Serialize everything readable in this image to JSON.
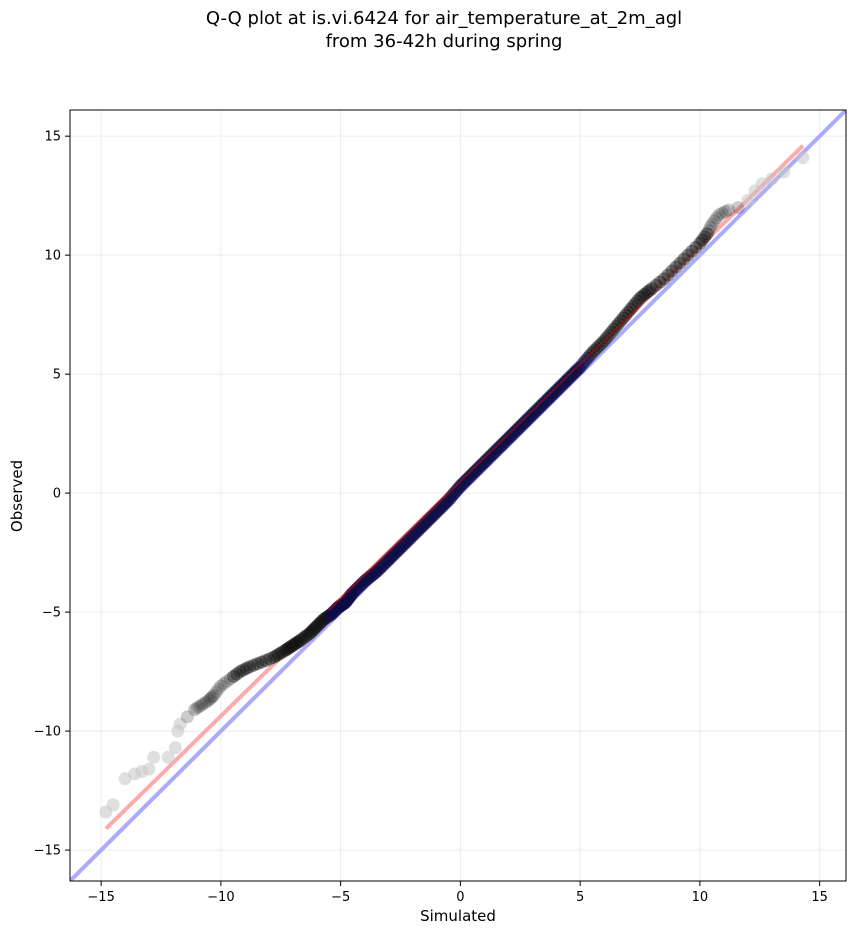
{
  "chart_data": {
    "type": "scatter",
    "title_lines": [
      "Q-Q plot at is.vi.6424 for air_temperature_at_2m_agl",
      "from 36-42h during spring"
    ],
    "xlabel": "Simulated",
    "ylabel": "Observed",
    "xlim": [
      -16.3,
      16.1
    ],
    "ylim": [
      -16.3,
      16.1
    ],
    "x_ticks": [
      -15,
      -10,
      -5,
      0,
      5,
      10,
      15
    ],
    "y_ticks": [
      -15,
      -10,
      -5,
      0,
      5,
      10,
      15
    ],
    "x_tick_labels": [
      "−15",
      "−10",
      "−5",
      "0",
      "5",
      "10",
      "15"
    ],
    "y_tick_labels": [
      "−15",
      "−10",
      "−5",
      "0",
      "5",
      "10",
      "15"
    ],
    "grid": true,
    "reference_lines": [
      {
        "role": "identity",
        "color": "#aaaaff",
        "x": [
          -16.3,
          16.1
        ],
        "y": [
          -16.3,
          16.1
        ]
      },
      {
        "role": "fit",
        "color": "#ffaaaa",
        "x": [
          -14.8,
          14.3
        ],
        "y": [
          -14.1,
          14.6
        ]
      }
    ],
    "quantile_points": [
      [
        -14.8,
        -13.4
      ],
      [
        -14.5,
        -13.1
      ],
      [
        -14.0,
        -12.0
      ],
      [
        -13.6,
        -11.8
      ],
      [
        -13.3,
        -11.7
      ],
      [
        -13.0,
        -11.6
      ],
      [
        -12.8,
        -11.1
      ],
      [
        -12.2,
        -11.1
      ],
      [
        -11.9,
        -10.7
      ],
      [
        -11.8,
        -10.0
      ],
      [
        -11.7,
        -9.7
      ],
      [
        -11.4,
        -9.4
      ],
      [
        -11.1,
        -9.1
      ],
      [
        -10.8,
        -8.9
      ],
      [
        -10.5,
        -8.7
      ],
      [
        -10.3,
        -8.5
      ],
      [
        -10.0,
        -8.1
      ],
      [
        -9.6,
        -7.8
      ],
      [
        -9.2,
        -7.5
      ],
      [
        -8.8,
        -7.3
      ],
      [
        -8.3,
        -7.1
      ],
      [
        -7.8,
        -6.9
      ],
      [
        -7.3,
        -6.6
      ],
      [
        -7.0,
        -6.4
      ],
      [
        -6.7,
        -6.2
      ],
      [
        -6.3,
        -5.9
      ],
      [
        -6.0,
        -5.6
      ],
      [
        -5.7,
        -5.3
      ],
      [
        -5.4,
        -5.1
      ],
      [
        -5.1,
        -4.8
      ],
      [
        -4.8,
        -4.6
      ],
      [
        -4.5,
        -4.2
      ],
      [
        -4.0,
        -3.7
      ],
      [
        -3.5,
        -3.3
      ],
      [
        -3.0,
        -2.8
      ],
      [
        -2.5,
        -2.3
      ],
      [
        -2.0,
        -1.8
      ],
      [
        -1.5,
        -1.3
      ],
      [
        -1.0,
        -0.8
      ],
      [
        -0.5,
        -0.3
      ],
      [
        0.0,
        0.3
      ],
      [
        0.5,
        0.8
      ],
      [
        1.0,
        1.3
      ],
      [
        1.5,
        1.8
      ],
      [
        2.0,
        2.3
      ],
      [
        2.5,
        2.8
      ],
      [
        3.0,
        3.3
      ],
      [
        3.5,
        3.8
      ],
      [
        4.0,
        4.3
      ],
      [
        4.5,
        4.8
      ],
      [
        5.0,
        5.3
      ],
      [
        5.5,
        5.9
      ],
      [
        6.0,
        6.4
      ],
      [
        6.5,
        7.0
      ],
      [
        7.0,
        7.6
      ],
      [
        7.5,
        8.2
      ],
      [
        8.0,
        8.6
      ],
      [
        8.5,
        9.0
      ],
      [
        9.0,
        9.5
      ],
      [
        9.5,
        10.0
      ],
      [
        10.0,
        10.5
      ],
      [
        10.3,
        10.9
      ],
      [
        10.5,
        11.3
      ],
      [
        10.8,
        11.7
      ],
      [
        11.2,
        11.9
      ],
      [
        11.6,
        12.0
      ],
      [
        12.0,
        12.3
      ],
      [
        12.3,
        12.7
      ],
      [
        12.6,
        13.0
      ],
      [
        13.0,
        13.2
      ],
      [
        13.5,
        13.5
      ],
      [
        14.3,
        14.1
      ]
    ],
    "colors": {
      "axes": "#000000",
      "grid": "#ececec",
      "points_dark": "#111111",
      "points_light": "#c4c4c4",
      "points_center": "#0a0a44",
      "identity_line": "#aaaaff",
      "fit_line": "#ffaaaa",
      "fit_line_center": "#b01010"
    }
  }
}
